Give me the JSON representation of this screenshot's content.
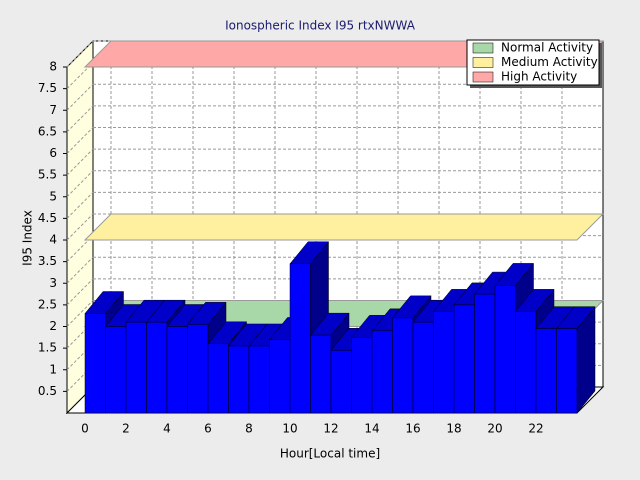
{
  "chart_data": {
    "type": "bar",
    "title": "Ionospheric Index I95 rtxNWWA",
    "x_label": "Hour[Local time]",
    "y_label": "I95 Index",
    "x": [
      0,
      1,
      2,
      3,
      4,
      5,
      6,
      7,
      8,
      9,
      10,
      11,
      12,
      13,
      14,
      15,
      16,
      17,
      18,
      19,
      20,
      21,
      22,
      23
    ],
    "values": [
      2.3,
      2.0,
      2.1,
      2.1,
      2.0,
      2.05,
      1.6,
      1.55,
      1.55,
      1.7,
      3.45,
      1.8,
      1.45,
      1.75,
      1.9,
      2.2,
      2.1,
      2.35,
      2.5,
      2.75,
      2.95,
      2.35,
      1.95,
      1.95
    ],
    "color": "#0000ff",
    "xlim": [
      0,
      24
    ],
    "xticks": [
      0,
      2,
      4,
      6,
      8,
      10,
      12,
      14,
      16,
      18,
      20,
      22
    ],
    "ylim": [
      0,
      8
    ],
    "yticks": [
      0.5,
      1,
      1.5,
      2,
      2.5,
      3,
      3.5,
      4,
      4.5,
      5,
      5.5,
      6,
      6.5,
      7,
      7.5,
      8
    ],
    "grid": true,
    "legend": "upper right",
    "bands": [
      {
        "name": "Normal Activity",
        "color": "#a8d8a8",
        "value": 2
      },
      {
        "name": "Medium Activity",
        "color": "#fff0a0",
        "value": 4
      },
      {
        "name": "High Activity",
        "color": "#ffa8a8",
        "value": 8
      }
    ]
  }
}
